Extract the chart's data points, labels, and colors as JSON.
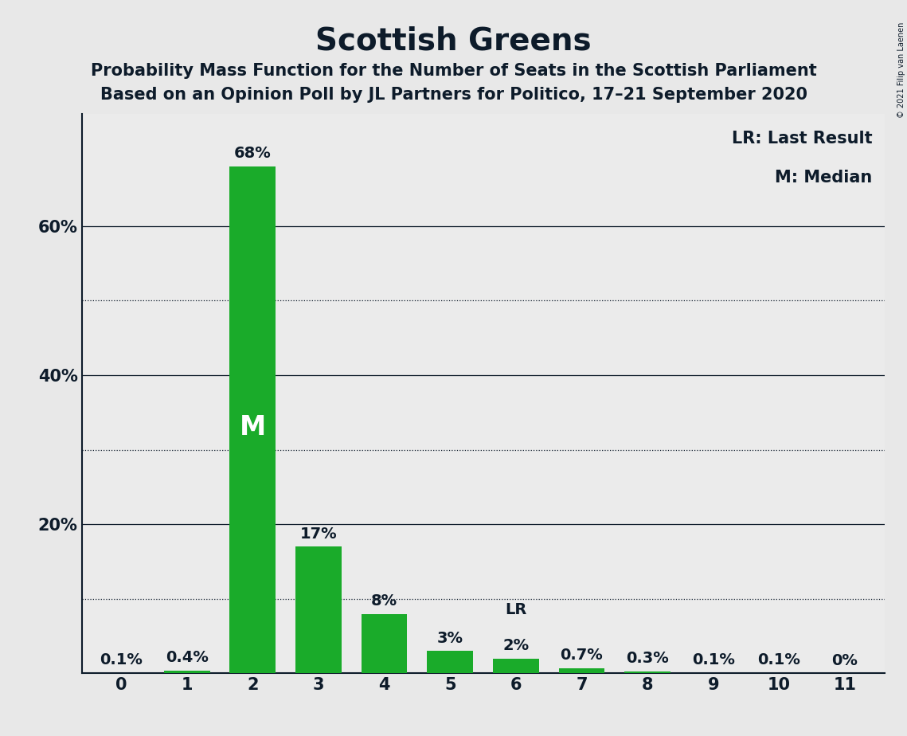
{
  "title": "Scottish Greens",
  "subtitle1": "Probability Mass Function for the Number of Seats in the Scottish Parliament",
  "subtitle2": "Based on an Opinion Poll by JL Partners for Politico, 17–21 September 2020",
  "copyright": "© 2021 Filip van Laenen",
  "categories": [
    0,
    1,
    2,
    3,
    4,
    5,
    6,
    7,
    8,
    9,
    10,
    11
  ],
  "values": [
    0.1,
    0.4,
    68.0,
    17.0,
    8.0,
    3.0,
    2.0,
    0.7,
    0.3,
    0.1,
    0.1,
    0.0
  ],
  "bar_labels": [
    "0.1%",
    "0.4%",
    "68%",
    "17%",
    "8%",
    "3%",
    "2%",
    "0.7%",
    "0.3%",
    "0.1%",
    "0.1%",
    "0%"
  ],
  "bar_color": "#1aab2a",
  "background_color": "#e8e8e8",
  "plot_background_color": "#ebebeb",
  "title_color": "#0d1b2a",
  "label_color": "#0d1b2a",
  "median_bar": 2,
  "lr_bar": 6,
  "yticks": [
    0,
    20,
    40,
    60
  ],
  "ytick_labels": [
    "",
    "20%",
    "40%",
    "60%"
  ],
  "dotted_gridlines": [
    10,
    30,
    50
  ],
  "solid_gridlines": [
    20,
    40,
    60
  ],
  "ylim": [
    0,
    75
  ],
  "legend_lr": "LR: Last Result",
  "legend_m": "M: Median",
  "title_fontsize": 28,
  "subtitle_fontsize": 15,
  "bar_label_fontsize": 14,
  "tick_fontsize": 15,
  "legend_fontsize": 15
}
